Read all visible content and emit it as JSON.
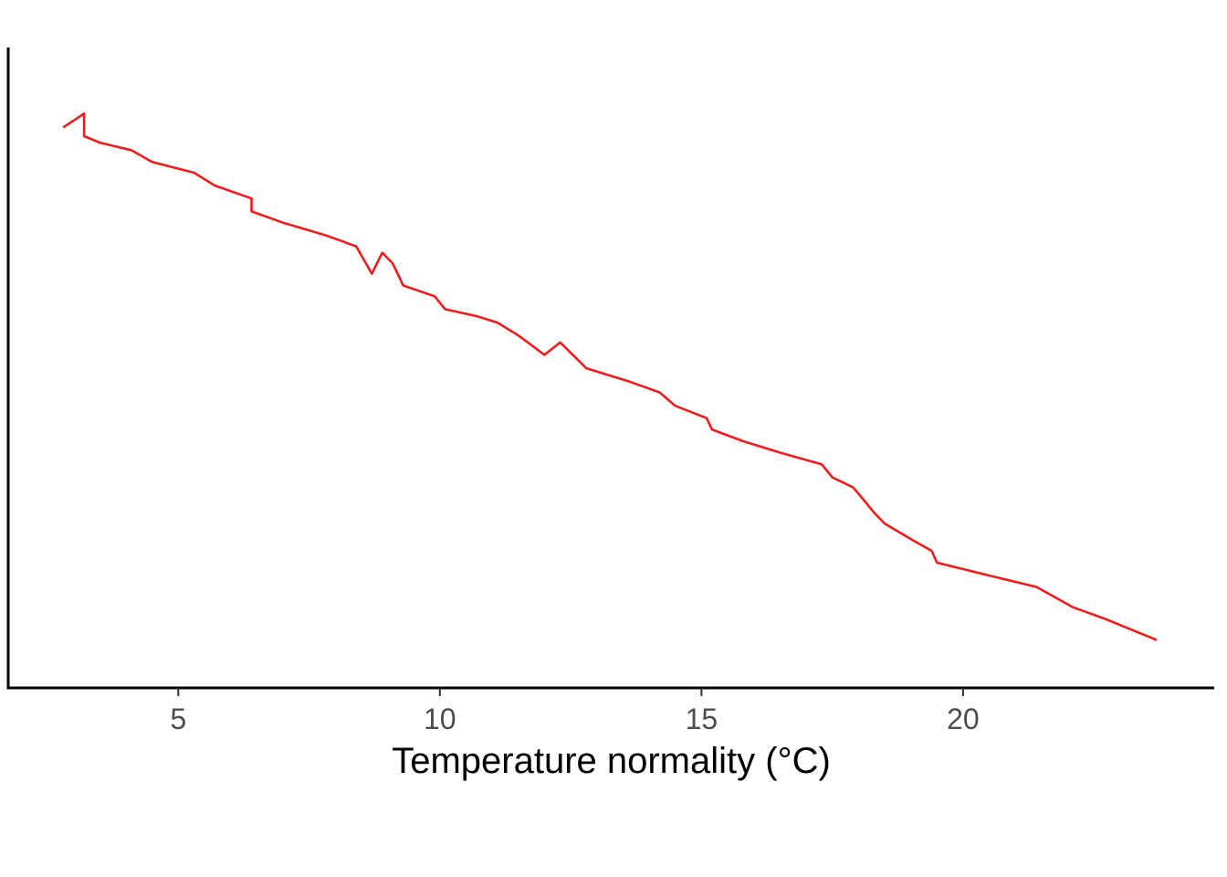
{
  "chart_data": {
    "type": "line",
    "title": "",
    "xlabel": "Temperature normality (°C)",
    "ylabel": "",
    "xlim": [
      1.75,
      24.8
    ],
    "ylim": [
      0,
      1
    ],
    "x_ticks": [
      5,
      10,
      15,
      20
    ],
    "x_tick_labels": [
      "5",
      "10",
      "15",
      "20"
    ],
    "y_ticks_shown": false,
    "grid": false,
    "legend": "none",
    "series": [
      {
        "color": "#ee1c1c",
        "x": [
          2.8,
          3.2,
          3.2,
          3.5,
          4.1,
          4.5,
          5.3,
          5.7,
          6.4,
          6.4,
          7.0,
          7.8,
          8.4,
          8.7,
          8.9,
          9.1,
          9.3,
          9.9,
          10.1,
          10.7,
          11.1,
          11.5,
          12.0,
          12.3,
          12.8,
          13.6,
          14.2,
          14.5,
          15.1,
          15.2,
          15.8,
          16.5,
          17.3,
          17.5,
          17.9,
          18.1,
          18.3,
          18.5,
          19.0,
          19.4,
          19.5,
          20.5,
          21.4,
          22.1,
          22.7,
          23.7
        ],
        "y": [
          0.919,
          0.945,
          0.903,
          0.891,
          0.877,
          0.855,
          0.835,
          0.811,
          0.787,
          0.763,
          0.742,
          0.719,
          0.698,
          0.647,
          0.686,
          0.666,
          0.625,
          0.605,
          0.581,
          0.568,
          0.556,
          0.532,
          0.496,
          0.519,
          0.471,
          0.447,
          0.426,
          0.401,
          0.378,
          0.357,
          0.335,
          0.314,
          0.292,
          0.268,
          0.249,
          0.226,
          0.202,
          0.182,
          0.153,
          0.131,
          0.109,
          0.085,
          0.064,
          0.026,
          0.005,
          -0.035
        ]
      }
    ]
  }
}
